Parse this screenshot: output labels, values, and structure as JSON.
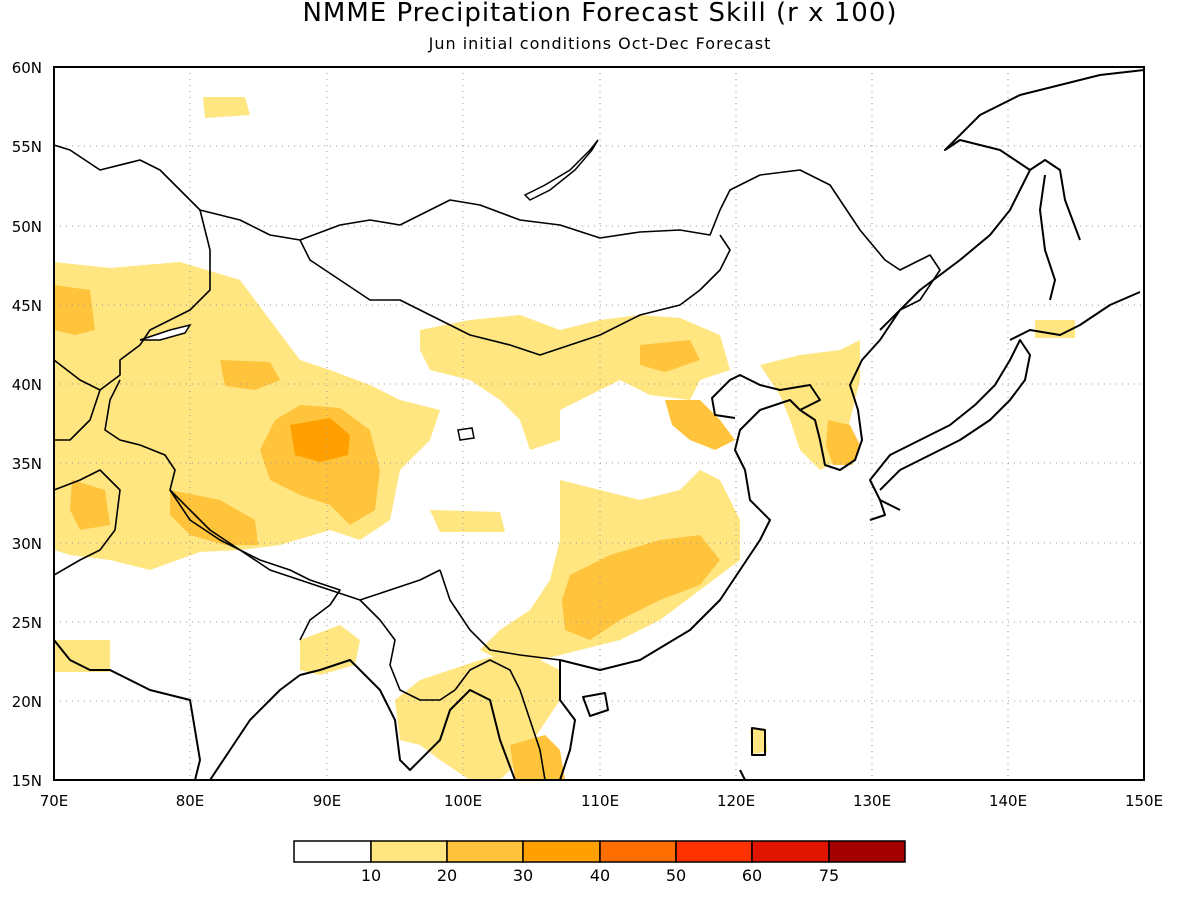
{
  "header": {
    "title": "NMME Precipitation Forecast Skill (r x 100)",
    "subtitle": "Jun initial conditions  Oct-Dec Forecast"
  },
  "map": {
    "lon_range": [
      70,
      150
    ],
    "lat_range": [
      15,
      60
    ],
    "x_ticks": [
      "70E",
      "80E",
      "90E",
      "100E",
      "110E",
      "120E",
      "130E",
      "140E",
      "150E"
    ],
    "y_ticks": [
      "60N",
      "55N",
      "50N",
      "45N",
      "40N",
      "35N",
      "30N",
      "25N",
      "20N",
      "15N"
    ],
    "grid": true
  },
  "legend": {
    "colors": [
      "#ffffff",
      "#ffe680",
      "#ffc33c",
      "#ffa000",
      "#ff6e00",
      "#ff3200",
      "#e11400",
      "#a50000"
    ],
    "labels": [
      "10",
      "20",
      "30",
      "40",
      "50",
      "60",
      "75"
    ]
  }
}
